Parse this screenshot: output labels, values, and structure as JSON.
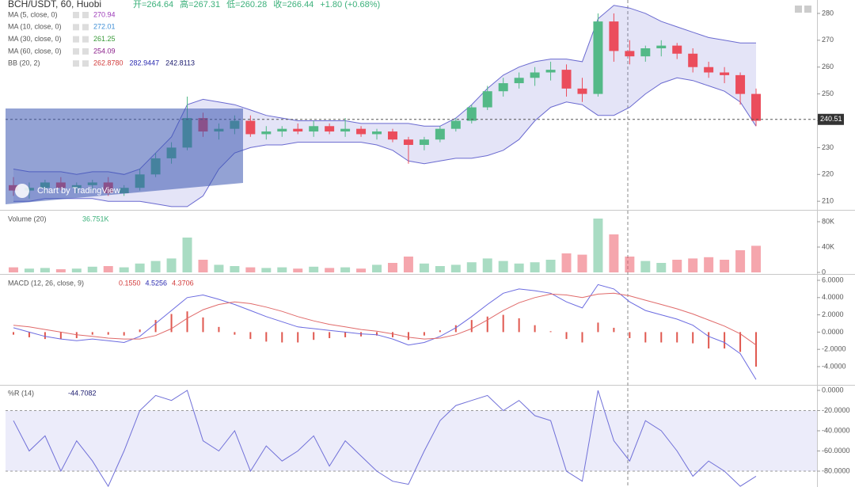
{
  "chart_data": [
    {
      "type": "candlestick",
      "title": "BCH/USDT, 60, Huobi",
      "ohlc_legend": [
        "开=264.64",
        "高=267.31",
        "低=260.28",
        "收=266.44",
        "+1.80 (+0.68%)"
      ],
      "legend_color": "#3bb07a",
      "indicators": [
        {
          "name": "MA (5, close, 0)",
          "values": [
            "270.94"
          ],
          "colors": [
            "#9c3bb8"
          ]
        },
        {
          "name": "MA (10, close, 0)",
          "values": [
            "272.01"
          ],
          "colors": [
            "#3f8fd6"
          ]
        },
        {
          "name": "MA (30, close, 0)",
          "values": [
            "261.25"
          ],
          "colors": [
            "#3a9a3a"
          ]
        },
        {
          "name": "MA (60, close, 0)",
          "values": [
            "254.09"
          ],
          "colors": [
            "#8a1f8a"
          ]
        },
        {
          "name": "BB (20, 2)",
          "values": [
            "262.8780",
            "282.9447",
            "242.8113"
          ],
          "colors": [
            "#d23b3b",
            "#2b2bb0",
            "#1a1a6e"
          ]
        }
      ],
      "watermark": "Chart by TradingView",
      "up_color": "#53b987",
      "down_color": "#eb4d5c",
      "open": [
        216,
        214,
        215,
        217,
        215,
        216,
        217,
        213,
        215,
        220,
        226,
        230,
        241,
        236,
        237,
        240,
        235,
        236,
        237,
        236,
        238,
        236,
        237,
        235,
        236,
        233,
        231,
        233,
        237,
        240,
        245,
        251,
        254,
        256,
        258,
        259,
        252,
        250,
        277,
        266,
        264,
        267,
        268,
        265,
        260,
        258,
        257,
        250
      ],
      "high": [
        219,
        217,
        218,
        219,
        217,
        218,
        219,
        216,
        222,
        228,
        232,
        249,
        243,
        239,
        242,
        242,
        238,
        238,
        239,
        240,
        239,
        241,
        238,
        237,
        237,
        234,
        234,
        238,
        241,
        246,
        253,
        256,
        258,
        260,
        262,
        261,
        256,
        280,
        280,
        270,
        268,
        270,
        269,
        267,
        262,
        260,
        258,
        252
      ],
      "low": [
        212,
        211,
        213,
        214,
        213,
        214,
        212,
        212,
        214,
        219,
        224,
        229,
        234,
        233,
        235,
        234,
        233,
        234,
        235,
        234,
        235,
        234,
        234,
        233,
        232,
        224,
        229,
        232,
        236,
        239,
        244,
        249,
        252,
        253,
        255,
        249,
        247,
        249,
        262,
        261,
        262,
        264,
        263,
        258,
        256,
        254,
        246,
        238
      ],
      "close": [
        214,
        215,
        217,
        215,
        216,
        217,
        213,
        215,
        220,
        226,
        230,
        241,
        236,
        237,
        240,
        235,
        236,
        237,
        236,
        238,
        236,
        237,
        235,
        236,
        233,
        231,
        233,
        237,
        240,
        245,
        251,
        254,
        256,
        258,
        259,
        252,
        250,
        277,
        266,
        264,
        267,
        268,
        265,
        260,
        258,
        257,
        250,
        240
      ],
      "bb_upper": [
        222,
        221,
        221,
        221,
        220,
        221,
        221,
        220,
        222,
        228,
        234,
        246,
        248,
        247,
        246,
        244,
        242,
        241,
        240,
        240,
        240,
        240,
        239,
        239,
        239,
        239,
        238,
        238,
        241,
        246,
        252,
        257,
        260,
        262,
        263,
        263,
        262,
        278,
        283,
        282,
        280,
        277,
        275,
        273,
        271,
        270,
        269,
        269
      ],
      "bb_lower": [
        210,
        210,
        211,
        211,
        211,
        211,
        210,
        210,
        210,
        209,
        208,
        208,
        212,
        222,
        228,
        230,
        231,
        231,
        232,
        232,
        232,
        232,
        232,
        231,
        229,
        225,
        224,
        225,
        226,
        226,
        227,
        229,
        233,
        240,
        245,
        247,
        246,
        242,
        242,
        245,
        250,
        254,
        256,
        255,
        253,
        251,
        247,
        238
      ],
      "bb_color": "#6a6ad0",
      "last_price": 240.51,
      "ylim": [
        206.8,
        285
      ],
      "yticks": [
        210,
        220,
        230,
        240,
        250,
        260,
        270,
        280
      ]
    },
    {
      "type": "bar",
      "title": "Volume (20)",
      "legend_value": "36.751K",
      "legend_color": "#3bb07a",
      "values": [
        8000,
        6000,
        7000,
        5000,
        6000,
        9000,
        10000,
        8000,
        14000,
        18000,
        22000,
        55000,
        20000,
        12000,
        10000,
        8000,
        7000,
        8000,
        6000,
        9000,
        7000,
        8000,
        6000,
        12000,
        15000,
        25000,
        14000,
        10000,
        12000,
        16000,
        22000,
        18000,
        14000,
        16000,
        20000,
        30000,
        28000,
        85000,
        60000,
        25000,
        18000,
        15000,
        20000,
        22000,
        24000,
        20000,
        35000,
        42000
      ],
      "ylim": [
        -2500,
        96250
      ],
      "yticks": [
        {
          "value": 0,
          "label": "0"
        },
        {
          "value": 40000,
          "label": "40K"
        },
        {
          "value": 80000,
          "label": "80K"
        }
      ]
    },
    {
      "type": "macd",
      "title": "MACD (12, 26, close, 9)",
      "legend_values": [
        "0.1550",
        "4.5256",
        "4.3706"
      ],
      "legend_colors": [
        "#d23b3b",
        "#2b2bb0",
        "#d23b3b"
      ],
      "histogram": {
        "color": "#e0584f",
        "values": [
          -0.3,
          -0.6,
          -0.8,
          -0.8,
          -0.7,
          -0.3,
          -0.3,
          -0.4,
          0.3,
          1.4,
          2.1,
          2.4,
          1.7,
          0.6,
          -0.3,
          -0.8,
          -1.1,
          -1.2,
          -1.2,
          -0.9,
          -0.7,
          -0.6,
          -0.5,
          -0.4,
          -0.6,
          -0.9,
          -0.4,
          0.2,
          0.8,
          1.4,
          1.8,
          2,
          1.6,
          0.8,
          0.1,
          -0.8,
          -1.2,
          1.1,
          0.5,
          -0.7,
          -1.2,
          -1.2,
          -1.2,
          -1.3,
          -1.9,
          -1.9,
          -2.3,
          -4
        ]
      },
      "macd": {
        "color": "#6b6be0",
        "values": [
          0.5,
          0,
          -0.5,
          -0.8,
          -1,
          -0.8,
          -1,
          -1.2,
          -0.5,
          1,
          2.5,
          4,
          4.3,
          3.8,
          3.2,
          2.5,
          1.8,
          1.2,
          0.6,
          0.4,
          0.2,
          0,
          -0.2,
          -0.3,
          -0.8,
          -1.5,
          -1.2,
          -0.5,
          0.5,
          1.8,
          3.2,
          4.5,
          5,
          4.8,
          4.5,
          3.5,
          2.8,
          5.5,
          5,
          3.5,
          2.5,
          2,
          1.5,
          0.8,
          -0.5,
          -1.2,
          -2.5,
          -5.5
        ]
      },
      "signal": {
        "color": "#e06a6a",
        "values": [
          0.8,
          0.6,
          0.3,
          0,
          -0.3,
          -0.5,
          -0.7,
          -0.8,
          -0.8,
          -0.4,
          0.4,
          1.6,
          2.6,
          3.2,
          3.5,
          3.3,
          2.9,
          2.4,
          1.8,
          1.3,
          0.9,
          0.6,
          0.3,
          0.1,
          -0.2,
          -0.6,
          -0.8,
          -0.7,
          -0.3,
          0.4,
          1.4,
          2.5,
          3.4,
          4,
          4.4,
          4.3,
          4,
          4.4,
          4.5,
          4.2,
          3.7,
          3.2,
          2.7,
          2.1,
          1.4,
          0.7,
          -0.2,
          -1.5
        ]
      },
      "ylim": [
        -6.02,
        6.55
      ],
      "yticks": [
        {
          "value": 6,
          "label": "6.0000"
        },
        {
          "value": 4,
          "label": "4.0000"
        },
        {
          "value": 2,
          "label": "2.0000"
        },
        {
          "value": 0,
          "label": "0.0000"
        },
        {
          "value": -2,
          "label": "-2.0000"
        },
        {
          "value": -4,
          "label": "-4.0000"
        }
      ]
    },
    {
      "type": "line",
      "title": "%R (14)",
      "legend_value": "-44.7082",
      "legend_color": "#1a1a6e",
      "color": "#7070d8",
      "values": [
        -30,
        -60,
        -45,
        -80,
        -50,
        -70,
        -95,
        -60,
        -20,
        -5,
        -10,
        0,
        -50,
        -60,
        -40,
        -80,
        -55,
        -70,
        -60,
        -45,
        -75,
        -50,
        -65,
        -80,
        -90,
        -93,
        -60,
        -30,
        -15,
        -10,
        -5,
        -20,
        -10,
        -25,
        -30,
        -80,
        -90,
        0,
        -50,
        -70,
        -30,
        -40,
        -60,
        -85,
        -70,
        -80,
        -95,
        -85
      ],
      "band": [
        -20,
        -80
      ],
      "ylim": [
        -95.7,
        4.7
      ],
      "yticks": [
        {
          "value": 0,
          "label": "0.0000"
        },
        {
          "value": -20,
          "label": "-20.0000"
        },
        {
          "value": -40,
          "label": "-40.0000"
        },
        {
          "value": -60,
          "label": "-60.0000"
        },
        {
          "value": -80,
          "label": "-80.0000"
        }
      ]
    }
  ]
}
